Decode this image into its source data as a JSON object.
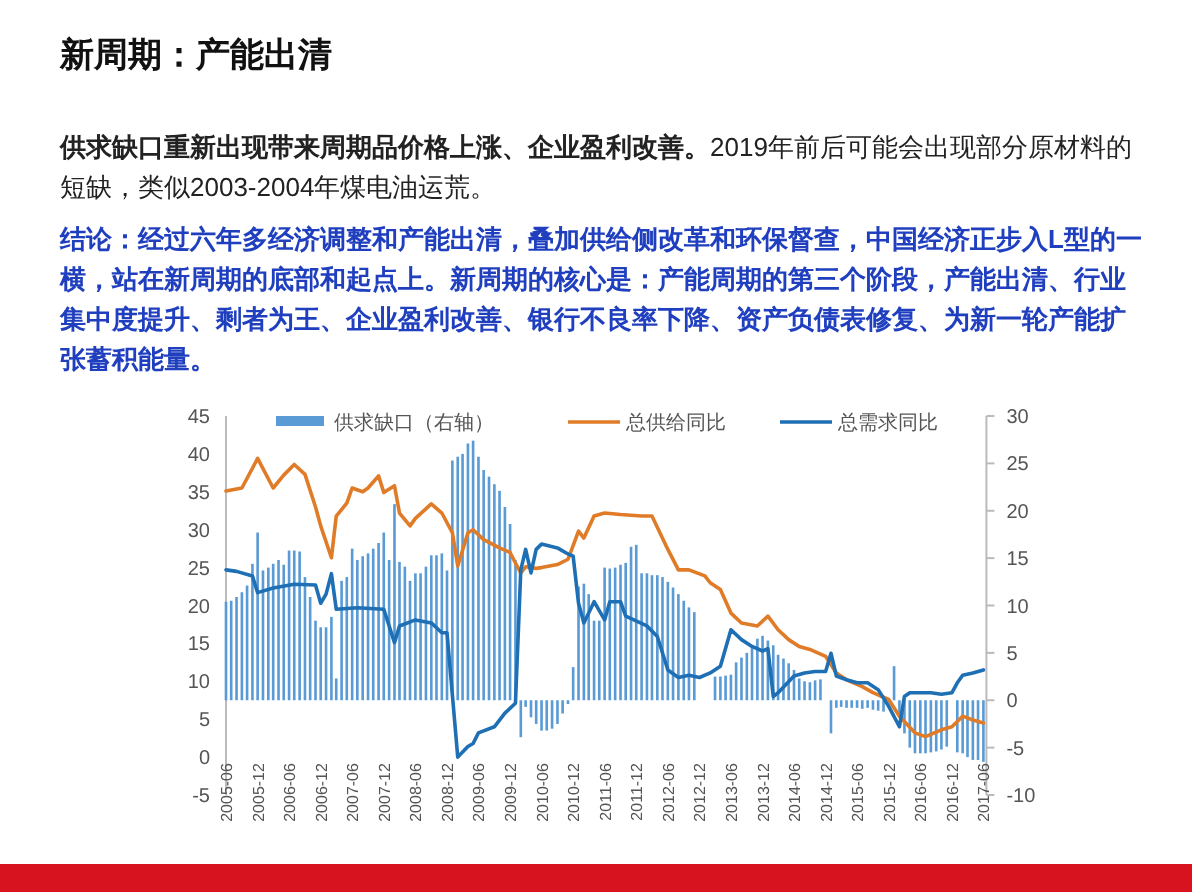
{
  "chart_data": {
    "type": "bar",
    "title": "新周期：产能出清",
    "annotations": [
      "**供求缺口重新出现带来周期品价格上涨、企业盈利改善。**2019年前后可能会出现部分原材料的短缺，类似2003-2004年煤电油运荒。",
      "结论：经过六年多经济调整和产能出清，叠加供给侧改革和环保督查，中国经济正步入L型的一横，站在新周期的底部和起点上。新周期的核心是：产能周期的第三个阶段，产能出清、行业集中度提升、剩者为王、企业盈利改善、银行不良率下降、资产负债表修复、为新一轮产能扩张蓄积能量。"
    ],
    "x": [
      "2005-06",
      "2005-07",
      "2005-08",
      "2005-09",
      "2005-10",
      "2005-11",
      "2005-12",
      "2006-01",
      "2006-02",
      "2006-03",
      "2006-04",
      "2006-05",
      "2006-06",
      "2006-07",
      "2006-08",
      "2006-09",
      "2006-10",
      "2006-11",
      "2006-12",
      "2007-01",
      "2007-02",
      "2007-03",
      "2007-04",
      "2007-05",
      "2007-06",
      "2007-07",
      "2007-08",
      "2007-09",
      "2007-10",
      "2007-11",
      "2007-12",
      "2008-01",
      "2008-02",
      "2008-03",
      "2008-04",
      "2008-05",
      "2008-06",
      "2008-07",
      "2008-08",
      "2008-09",
      "2008-10",
      "2008-11",
      "2008-12",
      "2009-01",
      "2009-02",
      "2009-03",
      "2009-04",
      "2009-05",
      "2009-06",
      "2009-07",
      "2009-08",
      "2009-09",
      "2009-10",
      "2009-11",
      "2009-12",
      "2010-01",
      "2010-02",
      "2010-03",
      "2010-04",
      "2010-05",
      "2010-06",
      "2010-07",
      "2010-08",
      "2010-09",
      "2010-10",
      "2010-11",
      "2010-12",
      "2011-01",
      "2011-02",
      "2011-03",
      "2011-04",
      "2011-05",
      "2011-06",
      "2011-07",
      "2011-08",
      "2011-09",
      "2011-10",
      "2011-11",
      "2011-12",
      "2012-01",
      "2012-02",
      "2012-03",
      "2012-04",
      "2012-05",
      "2012-06",
      "2012-07",
      "2012-08",
      "2012-09",
      "2012-10",
      "2012-11",
      "2012-12",
      "2013-01",
      "2013-02",
      "2013-03",
      "2013-04",
      "2013-05",
      "2013-06",
      "2013-07",
      "2013-08",
      "2013-09",
      "2013-10",
      "2013-11",
      "2013-12",
      "2014-01",
      "2014-02",
      "2014-03",
      "2014-04",
      "2014-05",
      "2014-06",
      "2014-07",
      "2014-08",
      "2014-09",
      "2014-10",
      "2014-11",
      "2014-12",
      "2015-01",
      "2015-02",
      "2015-03",
      "2015-04",
      "2015-05",
      "2015-06",
      "2015-07",
      "2015-08",
      "2015-09",
      "2015-10",
      "2015-11",
      "2015-12",
      "2016-01",
      "2016-02",
      "2016-03",
      "2016-04",
      "2016-05",
      "2016-06",
      "2016-07",
      "2016-08",
      "2016-09",
      "2016-10",
      "2016-11",
      "2016-12",
      "2017-01",
      "2017-02",
      "2017-03",
      "2017-04",
      "2017-05",
      "2017-06"
    ],
    "xlim": [
      "2005-06",
      "2017-06"
    ],
    "xticks": [
      "2005-06",
      "2005-12",
      "2006-06",
      "2006-12",
      "2007-06",
      "2007-12",
      "2008-06",
      "2008-12",
      "2009-06",
      "2009-12",
      "2010-06",
      "2010-12",
      "2011-06",
      "2011-12",
      "2012-06",
      "2012-12",
      "2013-06",
      "2013-12",
      "2014-06",
      "2014-12",
      "2015-06",
      "2015-12",
      "2016-06",
      "2016-12",
      "2017-06"
    ],
    "ylim": [
      -5,
      45
    ],
    "yticks": [
      -5,
      0,
      5,
      10,
      15,
      20,
      25,
      30,
      35,
      40,
      45
    ],
    "y2lim": [
      -10,
      30
    ],
    "y2ticks": [
      -10,
      -5,
      0,
      5,
      10,
      15,
      20,
      25,
      30
    ],
    "legend": "top",
    "series": [
      {
        "name": "供求缺口（右轴）",
        "axis": "y2",
        "color": "#5b9bd5",
        "values": [
          10.4,
          10.5,
          10.9,
          11.4,
          12.1,
          14.4,
          17.7,
          13.7,
          14.0,
          14.4,
          14.8,
          14.3,
          15.8,
          15.8,
          15.7,
          13.0,
          10.9,
          8.4,
          7.7,
          7.7,
          8.8,
          2.3,
          12.6,
          13.0,
          16.0,
          14.8,
          15.2,
          15.5,
          16.0,
          16.6,
          17.7,
          14.8,
          20.7,
          14.6,
          14.1,
          12.6,
          13.4,
          13.4,
          14.1,
          15.3,
          15.3,
          15.5,
          13.7,
          25.3,
          25.7,
          26.0,
          27.1,
          27.4,
          25.7,
          24.3,
          23.6,
          22.8,
          22.1,
          20.4,
          18.6,
          14.8,
          -3.9,
          -0.7,
          -1.8,
          -2.5,
          -3.2,
          -3.2,
          -3.0,
          -2.5,
          -1.4,
          -0.4,
          3.5,
          12.0,
          12.3,
          11.2,
          8.4,
          8.4,
          14.0,
          13.9,
          14.0,
          14.3,
          14.5,
          16.2,
          16.4,
          13.4,
          13.4,
          13.2,
          13.2,
          13.0,
          12.5,
          11.9,
          11.2,
          10.5,
          9.8,
          9.3,
          null,
          null,
          null,
          2.5,
          2.5,
          2.6,
          2.7,
          4.0,
          4.5,
          5.0,
          5.6,
          6.5,
          6.8,
          6.3,
          5.8,
          4.8,
          4.4,
          3.9,
          3.2,
          2.3,
          2.0,
          1.9,
          2.1,
          2.2,
          null,
          -3.5,
          -0.8,
          -0.7,
          -0.8,
          -0.8,
          -0.8,
          -0.9,
          -0.8,
          -1.0,
          -1.1,
          -1.2,
          null,
          3.6,
          -1.8,
          -3.5,
          -5.0,
          -5.6,
          -5.6,
          -5.6,
          -5.5,
          -5.4,
          -5.2,
          -4.9,
          null,
          -5.5,
          -5.6,
          -6.0,
          -6.3,
          -6.3,
          -6.5
        ]
      },
      {
        "name": "总供给同比",
        "type": "line",
        "color": "#e07b28",
        "x": [
          "2005-06",
          "2005-09",
          "2005-12",
          "2006-03",
          "2006-05",
          "2006-07",
          "2006-09",
          "2006-11",
          "2006-12",
          "2007-02",
          "2007-03",
          "2007-05",
          "2007-06",
          "2007-08",
          "2007-09",
          "2007-11",
          "2007-12",
          "2008-02",
          "2008-03",
          "2008-05",
          "2008-06",
          "2008-09",
          "2008-11",
          "2009-01",
          "2009-02",
          "2009-04",
          "2009-05",
          "2009-07",
          "2009-10",
          "2009-12",
          "2010-01",
          "2010-02",
          "2010-03",
          "2010-05",
          "2010-06",
          "2010-09",
          "2010-11",
          "2011-01",
          "2011-02",
          "2011-04",
          "2011-06",
          "2011-09",
          "2012-01",
          "2012-03",
          "2012-06",
          "2012-08",
          "2012-10",
          "2013-01",
          "2013-02",
          "2013-04",
          "2013-06",
          "2013-08",
          "2013-11",
          "2014-01",
          "2014-03",
          "2014-05",
          "2014-07",
          "2014-09",
          "2014-12",
          "2015-02",
          "2015-04",
          "2015-07",
          "2015-09",
          "2015-12",
          "2016-02",
          "2016-05",
          "2016-07",
          "2016-10",
          "2016-12",
          "2017-02",
          "2017-04",
          "2017-06"
        ],
        "values": [
          35.1,
          35.5,
          39.4,
          35.5,
          37.2,
          38.6,
          37.3,
          33.0,
          30.5,
          26.3,
          31.8,
          33.5,
          35.5,
          35.0,
          35.5,
          37.1,
          34.9,
          35.8,
          32.2,
          30.5,
          31.5,
          33.4,
          32.2,
          29.6,
          25.2,
          29.6,
          30.0,
          28.7,
          27.6,
          27.0,
          25.6,
          24.3,
          25.1,
          24.9,
          25.0,
          25.4,
          26.1,
          29.8,
          28.9,
          31.8,
          32.2,
          32.0,
          31.8,
          31.8,
          27.4,
          24.7,
          24.7,
          23.9,
          23.0,
          22.1,
          19.0,
          17.7,
          17.3,
          18.6,
          16.8,
          15.5,
          14.6,
          14.2,
          13.3,
          11.1,
          10.2,
          9.3,
          8.5,
          7.6,
          5.4,
          3.2,
          2.7,
          3.6,
          4.0,
          5.4,
          4.9,
          4.5
        ]
      },
      {
        "name": "总需求同比",
        "type": "line",
        "color": "#1f6fb5",
        "x": [
          "2005-06",
          "2005-08",
          "2005-11",
          "2005-12",
          "2006-03",
          "2006-07",
          "2006-11",
          "2006-12",
          "2007-01",
          "2007-02",
          "2007-03",
          "2007-07",
          "2007-12",
          "2008-02",
          "2008-03",
          "2008-06",
          "2008-09",
          "2008-11",
          "2008-12",
          "2009-02",
          "2009-04",
          "2009-05",
          "2009-06",
          "2009-09",
          "2009-11",
          "2010-01",
          "2010-02",
          "2010-03",
          "2010-04",
          "2010-05",
          "2010-06",
          "2010-09",
          "2010-11",
          "2010-12",
          "2011-01",
          "2011-02",
          "2011-04",
          "2011-06",
          "2011-07",
          "2011-09",
          "2011-10",
          "2012-02",
          "2012-04",
          "2012-06",
          "2012-08",
          "2012-10",
          "2012-12",
          "2013-02",
          "2013-04",
          "2013-06",
          "2013-08",
          "2013-10",
          "2013-12",
          "2014-01",
          "2014-02",
          "2014-03",
          "2014-06",
          "2014-08",
          "2014-10",
          "2014-12",
          "2015-01",
          "2015-02",
          "2015-04",
          "2015-06",
          "2015-08",
          "2015-10",
          "2015-12",
          "2016-02",
          "2016-03",
          "2016-04",
          "2016-06",
          "2016-08",
          "2016-10",
          "2016-12",
          "2017-01",
          "2017-02",
          "2017-04",
          "2017-06"
        ],
        "values": [
          24.7,
          24.5,
          23.9,
          21.7,
          22.3,
          22.8,
          22.7,
          20.3,
          21.5,
          24.2,
          19.5,
          19.7,
          19.5,
          15.1,
          17.3,
          18.1,
          17.7,
          16.4,
          16.4,
          0.0,
          1.4,
          1.8,
          3.2,
          4.0,
          5.8,
          7.1,
          24.7,
          27.4,
          24.3,
          27.4,
          28.1,
          27.6,
          26.8,
          26.5,
          20.3,
          17.7,
          20.5,
          18.1,
          20.5,
          20.5,
          18.6,
          17.3,
          15.9,
          11.5,
          10.5,
          10.8,
          10.5,
          11.1,
          12.0,
          16.8,
          15.5,
          14.6,
          14.0,
          14.3,
          8.0,
          8.5,
          10.7,
          11.1,
          11.3,
          11.3,
          13.7,
          10.7,
          10.2,
          9.8,
          9.8,
          8.9,
          6.7,
          4.0,
          8.0,
          8.5,
          8.5,
          8.5,
          8.3,
          8.5,
          9.8,
          10.8,
          11.1,
          11.5
        ]
      }
    ]
  }
}
